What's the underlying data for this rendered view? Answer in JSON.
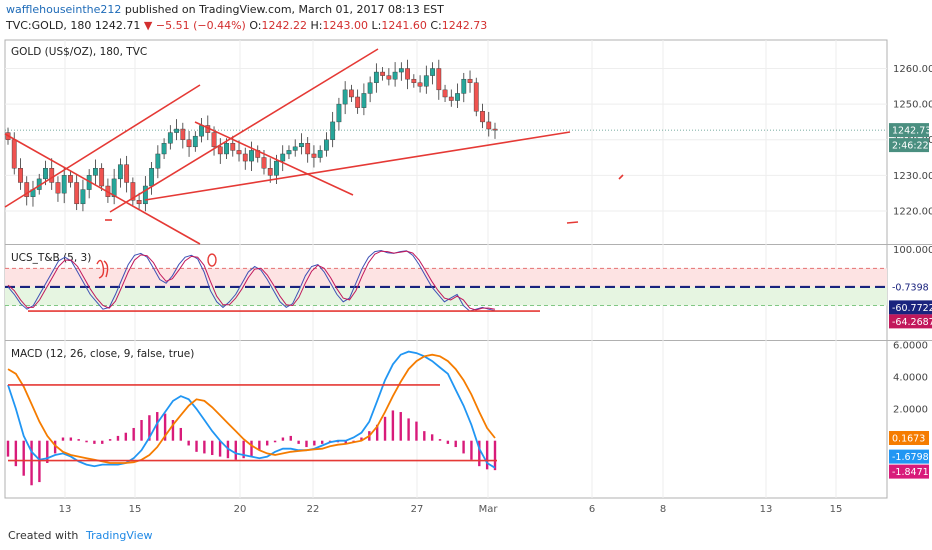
{
  "header": {
    "author": "wafflehouseinthe212",
    "published_text": "published on TradingView.com, March 01, 2017 08:13 EST",
    "symbol_line": "TVC:GOLD, 180",
    "last": "1242.71",
    "change": "−5.51 (−0.44%)",
    "o_label": "O:",
    "o": "1242.22",
    "h_label": "H:",
    "h": "1243.00",
    "l_label": "L:",
    "l": "1241.60",
    "c_label": "C:",
    "c": "1242.73"
  },
  "footer": {
    "created_with": "Created with",
    "brand": "TradingView"
  },
  "colors": {
    "up": "#26a69a",
    "down": "#ef5350",
    "trend": "#e53935",
    "stoch_k": "#3f51b5",
    "stoch_d": "#c2185b",
    "macd": "#2196f3",
    "signal": "#f57c00",
    "hist": "#d81b7a",
    "price_tag": "#4a8f80"
  },
  "chart_data": [
    {
      "type": "candlestick",
      "title": "GOLD (US$/OZ), 180, TVC",
      "ylim": [
        1211,
        1268
      ],
      "yticks": [
        1220,
        1230,
        1240,
        1250,
        1260
      ],
      "ytick_labels": [
        "1220.00",
        "1230.00",
        "1240.00",
        "1250.00",
        "1260.00"
      ],
      "last_price_label": "1242.73",
      "countdown_label": "2:46:22",
      "close_series": [
        1240,
        1232,
        1228,
        1224,
        1226,
        1229,
        1232,
        1228,
        1225,
        1230,
        1228,
        1222,
        1226,
        1230,
        1232,
        1227,
        1224,
        1229,
        1233,
        1228,
        1223,
        1222,
        1227,
        1232,
        1236,
        1239,
        1242,
        1243,
        1240,
        1238,
        1241,
        1244,
        1242,
        1238,
        1236,
        1239,
        1237,
        1236,
        1234,
        1237,
        1235,
        1232,
        1230,
        1234,
        1236,
        1237,
        1238,
        1239,
        1236,
        1235,
        1237,
        1240,
        1245,
        1250,
        1254,
        1252,
        1249,
        1253,
        1256,
        1259,
        1258,
        1257,
        1259,
        1260,
        1257,
        1256,
        1255,
        1258,
        1260,
        1254,
        1252,
        1251,
        1253,
        1257,
        1256,
        1248,
        1245,
        1243,
        1242.7
      ]
    },
    {
      "type": "line",
      "title": "UCS_T&B (5, 3)",
      "ylim": [
        -140,
        110
      ],
      "yticks": [
        100
      ],
      "ytick_labels": [
        "100.0000"
      ],
      "value_labels": [
        "-0.7398",
        "-60.7722",
        "-64.2687"
      ],
      "bands": {
        "overbought": 50,
        "oversold": -50,
        "zero": 0
      },
      "series": [
        {
          "values": [
            0,
            -20,
            -45,
            -60,
            -50,
            -20,
            10,
            40,
            70,
            80,
            70,
            40,
            10,
            -20,
            -40,
            -60,
            -55,
            -20,
            20,
            60,
            85,
            90,
            80,
            50,
            20,
            10,
            30,
            60,
            80,
            85,
            75,
            40,
            -10,
            -40,
            -55,
            -40,
            -20,
            10,
            40,
            55,
            45,
            20,
            -10,
            -40,
            -55,
            -45,
            -10,
            30,
            55,
            60,
            40,
            10,
            -20,
            -40,
            -30,
            10,
            50,
            80,
            95,
            98,
            92,
            90,
            95,
            97,
            85,
            60,
            30,
            0,
            -20,
            -40,
            -30,
            -20,
            -50,
            -65,
            -60,
            -55,
            -60,
            -64
          ]
        },
        {
          "values": [
            5,
            -10,
            -35,
            -55,
            -55,
            -35,
            -5,
            25,
            55,
            72,
            72,
            55,
            25,
            -5,
            -30,
            -50,
            -57,
            -38,
            0,
            40,
            72,
            86,
            84,
            65,
            35,
            15,
            22,
            45,
            70,
            82,
            80,
            58,
            15,
            -25,
            -48,
            -48,
            -30,
            -5,
            25,
            48,
            50,
            32,
            5,
            -25,
            -48,
            -50,
            -28,
            10,
            42,
            58,
            50,
            25,
            -5,
            -30,
            -35,
            -10,
            30,
            65,
            88,
            96,
            95,
            91,
            93,
            96,
            91,
            72,
            45,
            15,
            -10,
            -30,
            -35,
            -25,
            -35,
            -57,
            -62,
            -57,
            -57,
            -60
          ]
        }
      ]
    },
    {
      "type": "line",
      "title": "MACD (12, 26, close, 9, false, true)",
      "ylim": [
        -3.6,
        6.2
      ],
      "yticks": [
        2,
        4,
        6
      ],
      "ytick_labels": [
        "2.0000",
        "4.0000",
        "6.0000"
      ],
      "value_labels": [
        "0.1673",
        "-1.6798",
        "-1.8471"
      ],
      "series": [
        {
          "values": [
            3.5,
            2.0,
            0.3,
            -0.7,
            -1.2,
            -1.1,
            -0.9,
            -0.8,
            -1.0,
            -1.3,
            -1.5,
            -1.6,
            -1.5,
            -1.5,
            -1.5,
            -1.4,
            -1.1,
            -0.6,
            0.2,
            1.1,
            1.8,
            2.5,
            2.8,
            2.6,
            2.0,
            1.3,
            0.6,
            0.0,
            -0.5,
            -0.8,
            -0.9,
            -1.0,
            -1.1,
            -1.0,
            -0.7,
            -0.5,
            -0.5,
            -0.6,
            -0.6,
            -0.5,
            -0.3,
            -0.1,
            0.0,
            0.0,
            0.2,
            0.5,
            1.2,
            2.5,
            3.8,
            4.8,
            5.4,
            5.6,
            5.5,
            5.3,
            5.0,
            4.6,
            4.2,
            3.2,
            2.2,
            1.0,
            -0.5,
            -1.4,
            -1.7
          ]
        },
        {
          "values": [
            4.5,
            4.2,
            3.4,
            2.3,
            1.2,
            0.3,
            -0.3,
            -0.7,
            -0.9,
            -1.0,
            -1.1,
            -1.2,
            -1.3,
            -1.4,
            -1.4,
            -1.4,
            -1.35,
            -1.2,
            -0.9,
            -0.4,
            0.3,
            1.0,
            1.6,
            2.2,
            2.6,
            2.5,
            2.1,
            1.6,
            1.1,
            0.6,
            0.1,
            -0.3,
            -0.6,
            -0.8,
            -0.9,
            -0.8,
            -0.7,
            -0.65,
            -0.6,
            -0.55,
            -0.5,
            -0.35,
            -0.25,
            -0.2,
            -0.1,
            0.0,
            0.3,
            0.9,
            1.8,
            2.8,
            3.7,
            4.5,
            5.0,
            5.3,
            5.4,
            5.3,
            5.0,
            4.5,
            3.8,
            2.9,
            1.8,
            0.8,
            0.17
          ]
        },
        {
          "values": [
            -1.0,
            -1.6,
            -2.2,
            -2.8,
            -2.6,
            -1.4,
            -0.8,
            0.2,
            0.2,
            0.1,
            -0.1,
            -0.2,
            -0.2,
            0.1,
            0.3,
            0.5,
            0.8,
            1.3,
            1.6,
            1.8,
            1.7,
            1.3,
            0.8,
            -0.3,
            -0.7,
            -0.8,
            -0.9,
            -1.0,
            -1.1,
            -1.2,
            -1.1,
            -1.0,
            -0.6,
            -0.3,
            -0.1,
            0.2,
            0.3,
            -0.2,
            -0.4,
            -0.3,
            -0.2,
            -0.1,
            -0.1,
            -0.2,
            -0.1,
            0.2,
            0.6,
            1.0,
            1.5,
            1.9,
            1.8,
            1.4,
            1.2,
            0.6,
            0.4,
            0.1,
            -0.2,
            -0.4,
            -0.8,
            -1.2,
            -1.6,
            -1.8,
            -1.85
          ]
        }
      ]
    }
  ],
  "time_axis": {
    "ticks": [
      "13",
      "15",
      "20",
      "22",
      "27",
      "Mar",
      "6",
      "8",
      "13",
      "15"
    ]
  }
}
